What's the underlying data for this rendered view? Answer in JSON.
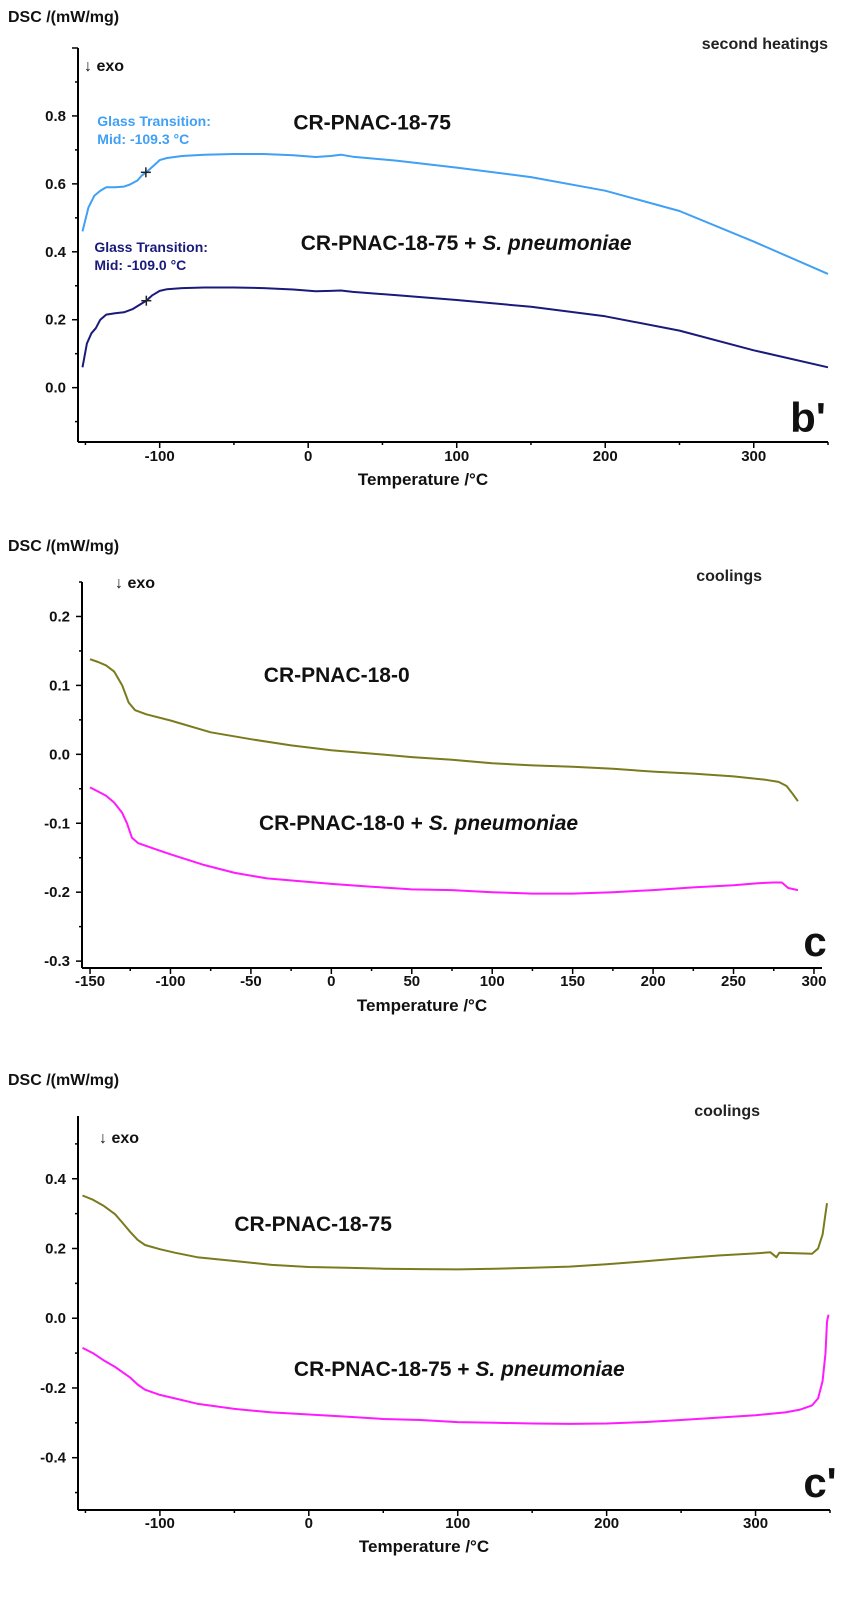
{
  "chart_data": [
    {
      "type": "line",
      "panel_label": "b'",
      "corner_label": "second heatings",
      "ylabel": "DSC /(mW/mg)",
      "xlabel": "Temperature /°C",
      "exo_label": "↓ exo",
      "xlim": [
        -155,
        350
      ],
      "ylim": [
        -0.16,
        1.0
      ],
      "xticks": [
        -100,
        0,
        100,
        200,
        300
      ],
      "yticks": [
        0.0,
        0.2,
        0.4,
        0.6,
        0.8
      ],
      "ytick_labels": [
        "0.0",
        "0.2",
        "0.4",
        "0.6",
        "0.8"
      ],
      "series": [
        {
          "name": "CR-PNAC-18-75",
          "name_label": "CR-PNAC-18-75",
          "color": "#3fa0f5",
          "label_pos": [
            -10,
            0.76
          ],
          "points": [
            [
              -152,
              0.46
            ],
            [
              -148,
              0.53
            ],
            [
              -144,
              0.565
            ],
            [
              -140,
              0.58
            ],
            [
              -136,
              0.59
            ],
            [
              -130,
              0.59
            ],
            [
              -124,
              0.592
            ],
            [
              -120,
              0.598
            ],
            [
              -115,
              0.61
            ],
            [
              -112,
              0.625
            ],
            [
              -109,
              0.634
            ],
            [
              -105,
              0.65
            ],
            [
              -100,
              0.67
            ],
            [
              -95,
              0.676
            ],
            [
              -85,
              0.682
            ],
            [
              -70,
              0.686
            ],
            [
              -50,
              0.688
            ],
            [
              -30,
              0.688
            ],
            [
              -10,
              0.684
            ],
            [
              5,
              0.679
            ],
            [
              15,
              0.682
            ],
            [
              22,
              0.686
            ],
            [
              30,
              0.68
            ],
            [
              60,
              0.668
            ],
            [
              100,
              0.648
            ],
            [
              150,
              0.62
            ],
            [
              200,
              0.58
            ],
            [
              250,
              0.52
            ],
            [
              300,
              0.43
            ],
            [
              350,
              0.335
            ]
          ],
          "annotation": {
            "title": "Glass Transition:",
            "value": "Mid:  -109.3 °C",
            "marker_x": -109.3,
            "marker_y": 0.634,
            "anno_x": -142,
            "anno_y": 0.77
          }
        },
        {
          "name": "CR-PNAC-18-75 + S. pneumoniae",
          "name_label": "CR-PNAC-18-75 + ",
          "name_label_italic": "S. pneumoniae",
          "color": "#1a1a7a",
          "label_pos": [
            -5,
            0.405
          ],
          "points": [
            [
              -152,
              0.06
            ],
            [
              -149,
              0.13
            ],
            [
              -146,
              0.16
            ],
            [
              -143,
              0.175
            ],
            [
              -140,
              0.2
            ],
            [
              -136,
              0.215
            ],
            [
              -130,
              0.219
            ],
            [
              -124,
              0.222
            ],
            [
              -118,
              0.232
            ],
            [
              -112,
              0.248
            ],
            [
              -109,
              0.256
            ],
            [
              -105,
              0.272
            ],
            [
              -100,
              0.285
            ],
            [
              -95,
              0.29
            ],
            [
              -85,
              0.293
            ],
            [
              -70,
              0.295
            ],
            [
              -50,
              0.295
            ],
            [
              -30,
              0.293
            ],
            [
              -10,
              0.289
            ],
            [
              5,
              0.284
            ],
            [
              15,
              0.285
            ],
            [
              22,
              0.286
            ],
            [
              30,
              0.282
            ],
            [
              60,
              0.272
            ],
            [
              100,
              0.258
            ],
            [
              150,
              0.238
            ],
            [
              200,
              0.21
            ],
            [
              250,
              0.168
            ],
            [
              300,
              0.11
            ],
            [
              350,
              0.06
            ]
          ],
          "annotation": {
            "title": "Glass Transition:",
            "value": "Mid:  -109.0 °C",
            "marker_x": -109.0,
            "marker_y": 0.256,
            "anno_x": -144,
            "anno_y": 0.4
          }
        }
      ]
    },
    {
      "type": "line",
      "panel_label": "c",
      "corner_label": "coolings",
      "ylabel": "DSC /(mW/mg)",
      "xlabel": "Temperature /°C",
      "exo_label": "↓ exo",
      "xlim": [
        -155,
        305
      ],
      "ylim": [
        -0.31,
        0.25
      ],
      "xticks": [
        -150,
        -100,
        -50,
        0,
        50,
        100,
        150,
        200,
        250,
        300
      ],
      "yticks": [
        -0.3,
        -0.2,
        -0.1,
        0.0,
        0.1,
        0.2
      ],
      "ytick_labels": [
        "-0.3",
        "-0.2",
        "-0.1",
        "0.0",
        "0.1",
        "0.2"
      ],
      "series": [
        {
          "name": "CR-PNAC-18-0",
          "name_label": "CR-PNAC-18-0",
          "color": "#7a7a1e",
          "label_pos": [
            -42,
            0.105
          ],
          "points": [
            [
              -150,
              0.138
            ],
            [
              -145,
              0.134
            ],
            [
              -140,
              0.129
            ],
            [
              -135,
              0.12
            ],
            [
              -130,
              0.1
            ],
            [
              -126,
              0.075
            ],
            [
              -122,
              0.064
            ],
            [
              -115,
              0.058
            ],
            [
              -100,
              0.049
            ],
            [
              -75,
              0.032
            ],
            [
              -50,
              0.022
            ],
            [
              -25,
              0.013
            ],
            [
              0,
              0.006
            ],
            [
              25,
              0.001
            ],
            [
              50,
              -0.004
            ],
            [
              75,
              -0.008
            ],
            [
              100,
              -0.013
            ],
            [
              125,
              -0.016
            ],
            [
              150,
              -0.018
            ],
            [
              175,
              -0.021
            ],
            [
              200,
              -0.025
            ],
            [
              225,
              -0.028
            ],
            [
              250,
              -0.032
            ],
            [
              270,
              -0.037
            ],
            [
              278,
              -0.04
            ],
            [
              283,
              -0.046
            ],
            [
              287,
              -0.058
            ],
            [
              290,
              -0.068
            ]
          ],
          "annotation": null
        },
        {
          "name": "CR-PNAC-18-0 + S. pneumoniae",
          "name_label": "CR-PNAC-18-0 + ",
          "name_label_italic": "S. pneumoniae",
          "color": "#ff1aff",
          "label_pos": [
            -45,
            -0.11
          ],
          "points": [
            [
              -150,
              -0.048
            ],
            [
              -145,
              -0.054
            ],
            [
              -140,
              -0.06
            ],
            [
              -135,
              -0.07
            ],
            [
              -130,
              -0.085
            ],
            [
              -127,
              -0.1
            ],
            [
              -124,
              -0.121
            ],
            [
              -120,
              -0.129
            ],
            [
              -110,
              -0.137
            ],
            [
              -100,
              -0.145
            ],
            [
              -80,
              -0.16
            ],
            [
              -60,
              -0.172
            ],
            [
              -40,
              -0.18
            ],
            [
              -20,
              -0.184
            ],
            [
              0,
              -0.188
            ],
            [
              25,
              -0.192
            ],
            [
              50,
              -0.196
            ],
            [
              75,
              -0.197
            ],
            [
              100,
              -0.2
            ],
            [
              125,
              -0.202
            ],
            [
              150,
              -0.202
            ],
            [
              175,
              -0.2
            ],
            [
              200,
              -0.197
            ],
            [
              225,
              -0.193
            ],
            [
              250,
              -0.19
            ],
            [
              265,
              -0.187
            ],
            [
              275,
              -0.186
            ],
            [
              280,
              -0.186
            ],
            [
              284,
              -0.194
            ],
            [
              290,
              -0.197
            ]
          ],
          "annotation": null
        }
      ]
    },
    {
      "type": "line",
      "panel_label": "c'",
      "corner_label": "coolings",
      "ylabel": "DSC /(mW/mg)",
      "xlabel": "Temperature /°C",
      "exo_label": "↓ exo",
      "xlim": [
        -155,
        350
      ],
      "ylim": [
        -0.55,
        0.58
      ],
      "xticks": [
        -100,
        0,
        100,
        200,
        300
      ],
      "yticks": [
        -0.4,
        -0.2,
        0.0,
        0.2,
        0.4
      ],
      "ytick_labels": [
        "-0.4",
        "-0.2",
        "0.0",
        "0.2",
        "0.4"
      ],
      "series": [
        {
          "name": "CR-PNAC-18-75",
          "name_label": "CR-PNAC-18-75",
          "color": "#7a7a1e",
          "label_pos": [
            -50,
            0.25
          ],
          "points": [
            [
              -152,
              0.352
            ],
            [
              -145,
              0.34
            ],
            [
              -138,
              0.323
            ],
            [
              -130,
              0.298
            ],
            [
              -125,
              0.273
            ],
            [
              -120,
              0.248
            ],
            [
              -115,
              0.225
            ],
            [
              -110,
              0.21
            ],
            [
              -100,
              0.198
            ],
            [
              -90,
              0.188
            ],
            [
              -75,
              0.175
            ],
            [
              -50,
              0.164
            ],
            [
              -25,
              0.153
            ],
            [
              0,
              0.147
            ],
            [
              25,
              0.145
            ],
            [
              50,
              0.142
            ],
            [
              75,
              0.141
            ],
            [
              100,
              0.14
            ],
            [
              125,
              0.142
            ],
            [
              150,
              0.145
            ],
            [
              175,
              0.148
            ],
            [
              200,
              0.155
            ],
            [
              225,
              0.163
            ],
            [
              250,
              0.172
            ],
            [
              275,
              0.18
            ],
            [
              300,
              0.186
            ],
            [
              310,
              0.189
            ],
            [
              314,
              0.175
            ],
            [
              316,
              0.188
            ],
            [
              330,
              0.186
            ],
            [
              338,
              0.185
            ],
            [
              342,
              0.2
            ],
            [
              345,
              0.24
            ],
            [
              347,
              0.3
            ],
            [
              348,
              0.33
            ]
          ],
          "annotation": null
        },
        {
          "name": "CR-PNAC-18-75 + S. pneumoniae",
          "name_label": "CR-PNAC-18-75 + ",
          "name_label_italic": "S. pneumoniae",
          "color": "#ff1aff",
          "label_pos": [
            -10,
            -0.165
          ],
          "points": [
            [
              -152,
              -0.085
            ],
            [
              -145,
              -0.1
            ],
            [
              -138,
              -0.12
            ],
            [
              -130,
              -0.14
            ],
            [
              -125,
              -0.155
            ],
            [
              -120,
              -0.17
            ],
            [
              -115,
              -0.19
            ],
            [
              -110,
              -0.205
            ],
            [
              -100,
              -0.22
            ],
            [
              -90,
              -0.23
            ],
            [
              -75,
              -0.245
            ],
            [
              -50,
              -0.26
            ],
            [
              -25,
              -0.27
            ],
            [
              0,
              -0.276
            ],
            [
              25,
              -0.282
            ],
            [
              50,
              -0.289
            ],
            [
              75,
              -0.292
            ],
            [
              100,
              -0.298
            ],
            [
              125,
              -0.3
            ],
            [
              150,
              -0.302
            ],
            [
              175,
              -0.303
            ],
            [
              200,
              -0.302
            ],
            [
              225,
              -0.298
            ],
            [
              250,
              -0.292
            ],
            [
              275,
              -0.285
            ],
            [
              300,
              -0.278
            ],
            [
              320,
              -0.27
            ],
            [
              330,
              -0.262
            ],
            [
              338,
              -0.25
            ],
            [
              342,
              -0.23
            ],
            [
              345,
              -0.18
            ],
            [
              347,
              -0.1
            ],
            [
              348,
              -0.01
            ],
            [
              349,
              0.01
            ]
          ],
          "annotation": null
        }
      ]
    }
  ]
}
